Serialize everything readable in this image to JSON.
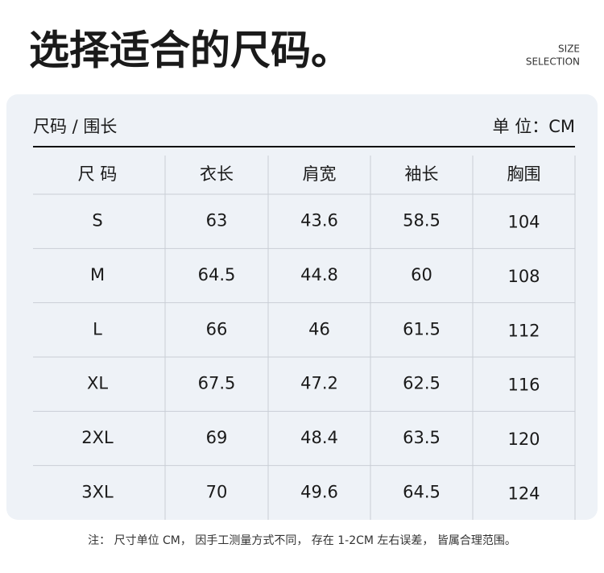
{
  "header": {
    "title": "选择适合的尺码。",
    "tag": [
      "SIZE",
      "SELECTION"
    ]
  },
  "table": {
    "caption": "尺码 / 围长",
    "unit": "单 位：CM",
    "columns": [
      "尺 码",
      "衣长",
      "肩宽",
      "袖长",
      "胸围"
    ],
    "rows": [
      [
        "S",
        63,
        43.6,
        58.5,
        104
      ],
      [
        "M",
        64.5,
        44.8,
        60,
        108
      ],
      [
        "L",
        66,
        46,
        61.5,
        112
      ],
      [
        "XL",
        67.5,
        47.2,
        62.5,
        116
      ],
      [
        "2XL",
        69,
        48.4,
        63.5,
        120
      ],
      [
        "3XL",
        70,
        49.6,
        64.5,
        124
      ]
    ]
  },
  "footer": {
    "note": "注： 尺寸单位 CM， 因手工测量方式不同， 存在 1-2CM 左右误差， 皆属合理范围。"
  }
}
